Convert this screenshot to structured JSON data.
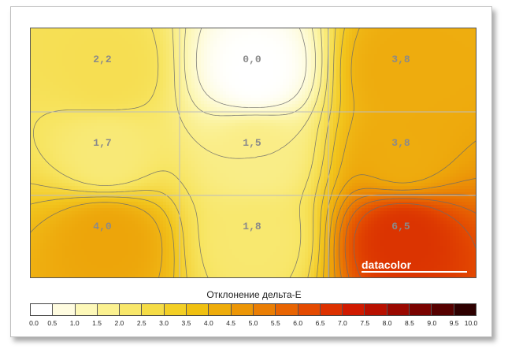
{
  "chart_data": {
    "type": "heatmap",
    "title": "",
    "grid_rows": 3,
    "grid_cols": 3,
    "cells": [
      [
        "2,2",
        "0,0",
        "3,8"
      ],
      [
        "1,7",
        "1,5",
        "3,8"
      ],
      [
        "4,0",
        "1,8",
        "6,5"
      ]
    ],
    "values": [
      [
        2.2,
        0.0,
        3.8
      ],
      [
        1.7,
        1.5,
        3.8
      ],
      [
        4.0,
        1.8,
        6.5
      ]
    ],
    "legend_title": "Отклонение дельта-E",
    "legend_ticks": [
      "0.0",
      "0.5",
      "1.0",
      "1.5",
      "2.0",
      "2.5",
      "3.0",
      "3.5",
      "4.0",
      "4.5",
      "5.0",
      "5.5",
      "6.0",
      "6.5",
      "7.0",
      "7.5",
      "8.0",
      "8.5",
      "9.0",
      "9.5",
      "10.0"
    ],
    "legend_colors": [
      "#ffffff",
      "#fffce0",
      "#fdf8b8",
      "#fbf190",
      "#f8e76a",
      "#f5dc46",
      "#f3cf25",
      "#f0c010",
      "#eeac0a",
      "#ec9606",
      "#ea7e04",
      "#e86402",
      "#e44a01",
      "#dd3100",
      "#d01a00",
      "#b81000",
      "#9a0800",
      "#7a0300",
      "#560100",
      "#2e0000"
    ],
    "logo": "datacolor",
    "grid": true
  }
}
